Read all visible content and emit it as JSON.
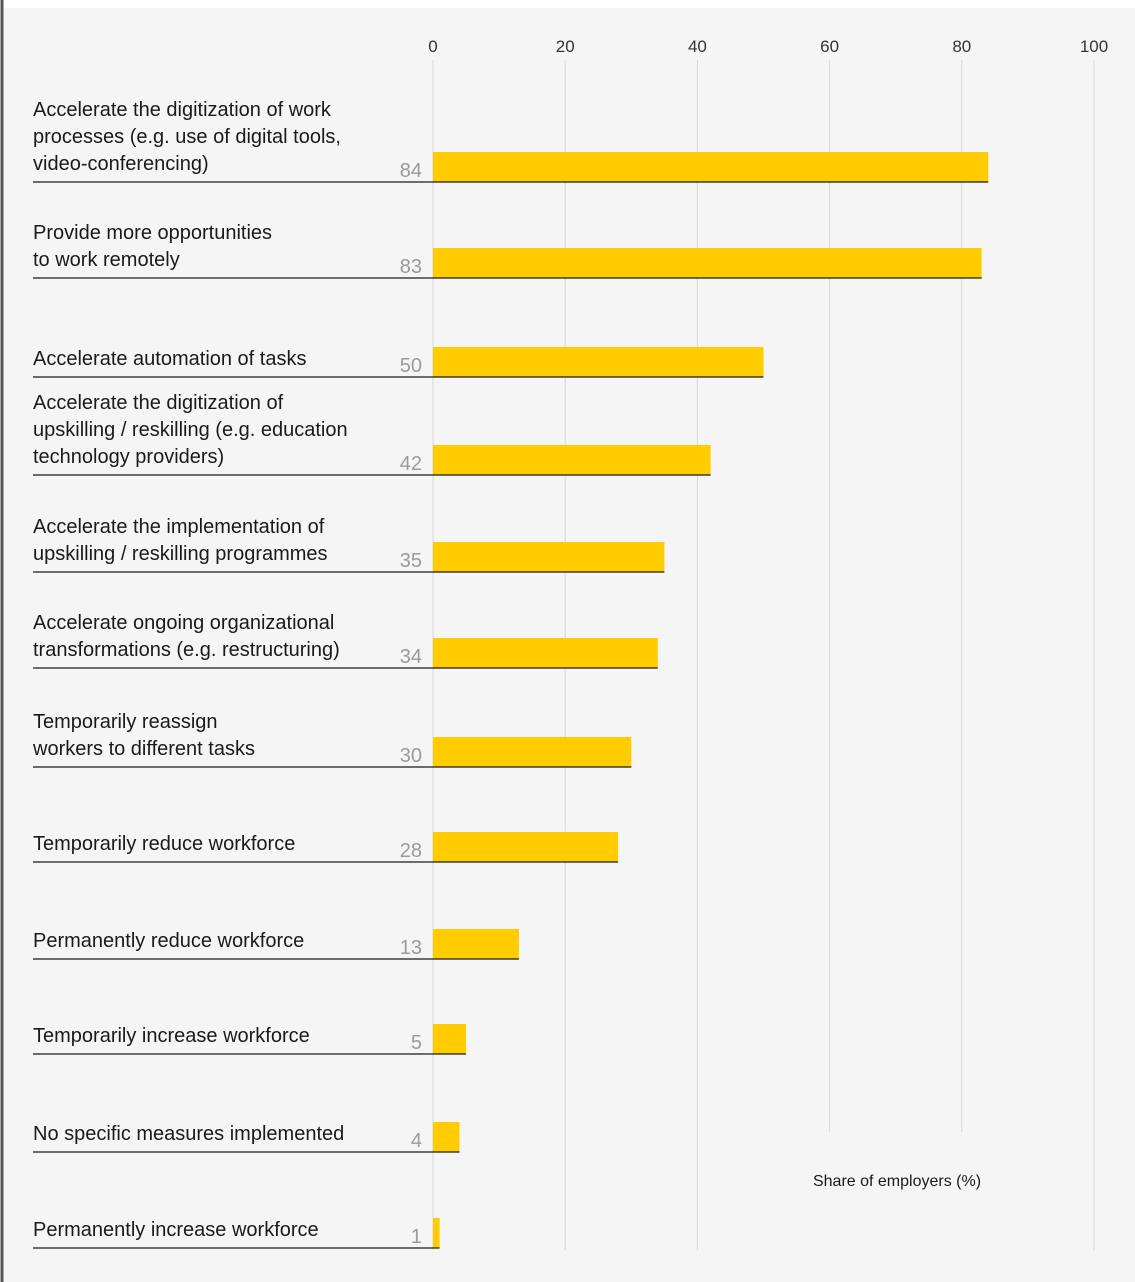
{
  "chart_data": {
    "type": "bar",
    "orientation": "horizontal",
    "categories": [
      "Accelerate the digitization of work processes (e.g. use of digital tools, video-conferencing)",
      "Provide more opportunities to work remotely",
      "Accelerate automation of tasks",
      "Accelerate the digitization of upskilling / reskilling (e.g. education technology providers)",
      "Accelerate the implementation of upskilling / reskilling programmes",
      "Accelerate ongoing organizational transformations (e.g. restructuring)",
      "Temporarily reassign workers to different tasks",
      "Temporarily reduce workforce",
      "Permanently reduce workforce",
      "Temporarily increase workforce",
      "No specific measures implemented",
      "Permanently increase workforce"
    ],
    "category_lines": [
      [
        "Accelerate the digitization of work",
        "processes (e.g. use of digital tools,",
        "video-conferencing)"
      ],
      [
        "Provide more opportunities",
        "to work remotely"
      ],
      [
        "Accelerate automation of tasks"
      ],
      [
        "Accelerate the digitization of",
        "upskilling / reskilling (e.g. education",
        "technology providers)"
      ],
      [
        "Accelerate the implementation of",
        "upskilling / reskilling programmes"
      ],
      [
        "Accelerate ongoing organizational",
        "transformations (e.g. restructuring)"
      ],
      [
        "Temporarily reassign",
        "workers to different tasks"
      ],
      [
        "Temporarily reduce workforce"
      ],
      [
        "Permanently reduce workforce"
      ],
      [
        "Temporarily increase workforce"
      ],
      [
        "No specific measures implemented"
      ],
      [
        "Permanently increase workforce"
      ]
    ],
    "values": [
      84,
      83,
      50,
      42,
      35,
      34,
      30,
      28,
      13,
      5,
      4,
      1
    ],
    "value_labels": [
      "84",
      "83",
      "50",
      "42",
      "35",
      "34",
      "30",
      "28",
      "13",
      "5",
      "4",
      "1"
    ],
    "xlim": [
      0,
      100
    ],
    "ticks": [
      0,
      20,
      40,
      60,
      80,
      100
    ],
    "tick_labels": [
      "0",
      "20",
      "40",
      "60",
      "80",
      "100"
    ],
    "xlabel": "Share of employers (%)",
    "ylabel": "",
    "title": "",
    "grid": true,
    "colors": {
      "bar": "#FFCC00",
      "background": "#F5F5F5",
      "gridline": "#D6D6D6",
      "underline": "#1A1A1A",
      "value_text": "#9A9A9A",
      "left_border": "#555555"
    }
  }
}
